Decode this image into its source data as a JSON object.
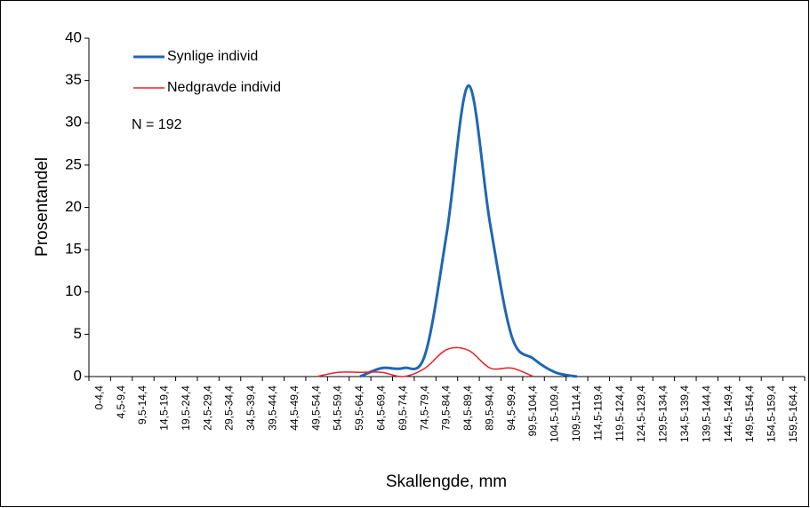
{
  "chart_data": {
    "type": "line",
    "categories": [
      "0-4,4",
      "4,5-9,4",
      "9,5-14,4",
      "14,5-19,4",
      "19,5-24,4",
      "24,5-29,4",
      "29,5-34,4",
      "34,5-39,4",
      "39,5-44,4",
      "44,5-49,4",
      "49,5-54,4",
      "54,5-59,4",
      "59,5-64,4",
      "64,5-69,4",
      "69,5-74,4",
      "74,5-79,4",
      "79,5-84,4",
      "84,5-89,4",
      "89,5-94,4",
      "94,5-99,4",
      "99,5-104,4",
      "104,5-109,4",
      "109,5-114,4",
      "114,5-119,4",
      "119,5-124,4",
      "124,5-129,4",
      "129,5-134,4",
      "134,5-139,4",
      "139,5-144,4",
      "144,5-149,4",
      "149,5-154,4",
      "154,5-159,4",
      "159,5-164,4"
    ],
    "series": [
      {
        "name": "Synlige individ",
        "color": "#1f66b4",
        "values": [
          null,
          null,
          null,
          null,
          null,
          null,
          null,
          null,
          null,
          null,
          null,
          null,
          0,
          1.0,
          1.0,
          2.6,
          17,
          34.4,
          18,
          4.7,
          2.1,
          0.5,
          0,
          null,
          null,
          null,
          null,
          null,
          null,
          null,
          null,
          null,
          null
        ]
      },
      {
        "name": "Nedgravde individ",
        "color": "#e8202a",
        "values": [
          null,
          null,
          null,
          null,
          null,
          null,
          null,
          null,
          null,
          null,
          0,
          0.5,
          0.5,
          0.5,
          0,
          1.0,
          3.2,
          3.1,
          1.0,
          1.0,
          0,
          null,
          null,
          null,
          null,
          null,
          null,
          null,
          null,
          null,
          null,
          null,
          null
        ]
      }
    ],
    "ylim": [
      0,
      40
    ],
    "yticks": [
      0,
      5,
      10,
      15,
      20,
      25,
      30,
      35,
      40
    ],
    "x_label": "Skallengde, mm",
    "y_label": "Prosentandel",
    "annotation": "N = 192",
    "grid": false,
    "legend": "top-left",
    "smooth": true
  }
}
